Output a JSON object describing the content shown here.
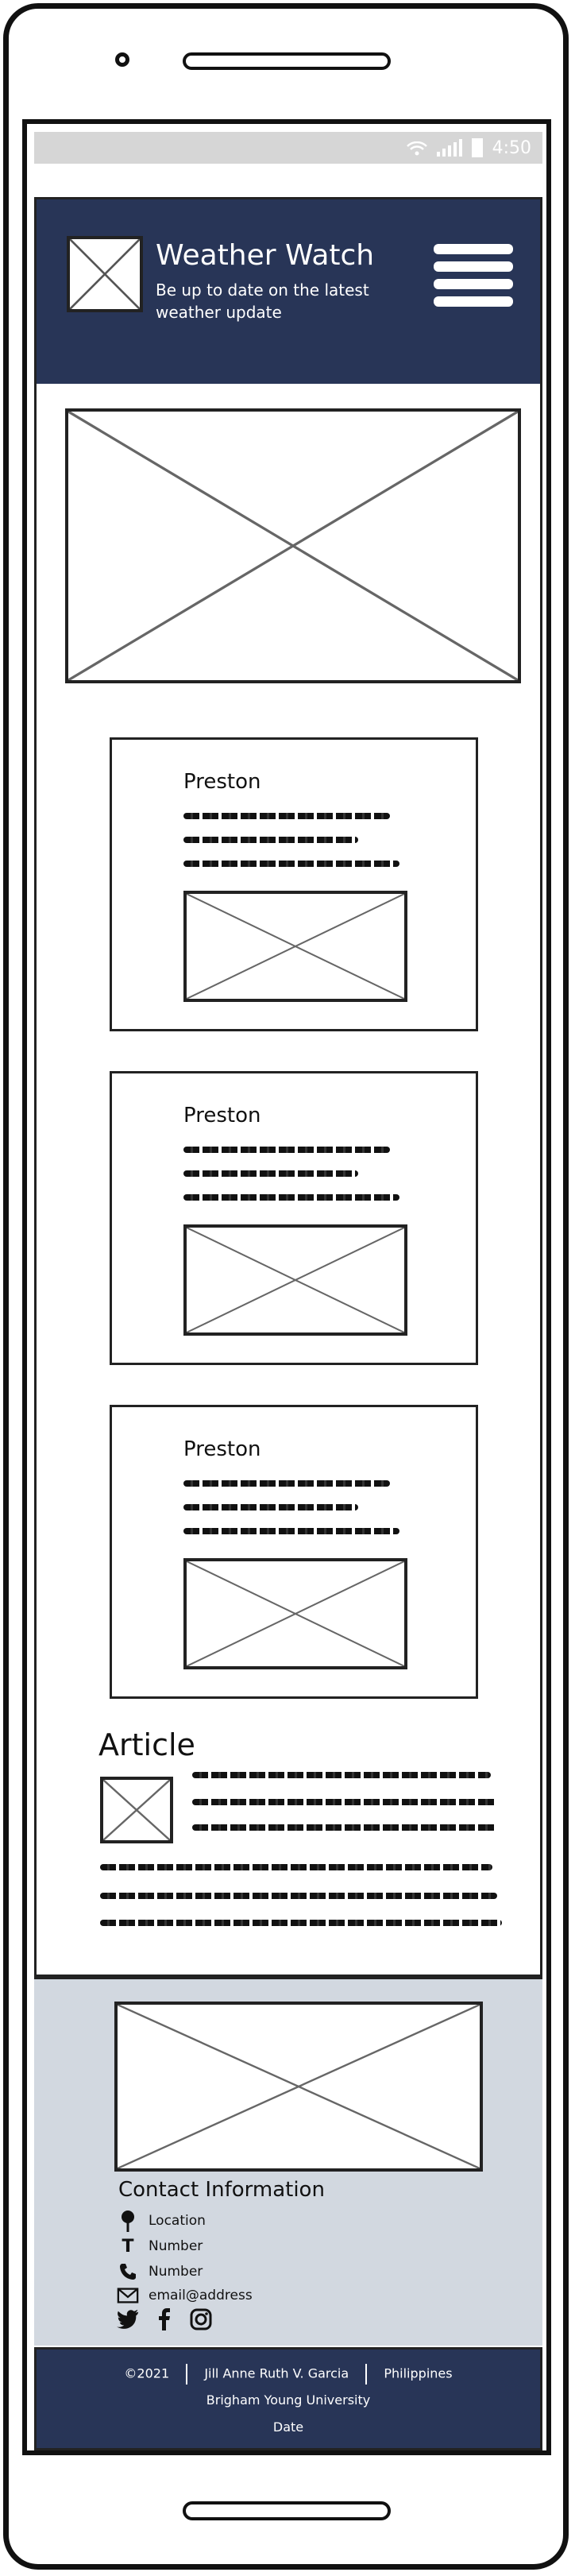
{
  "status_bar": {
    "time": "4:50",
    "icons": [
      "wifi-icon",
      "signal-icon",
      "battery-icon"
    ]
  },
  "header": {
    "title": "Weather Watch",
    "tagline": "Be up to date on the latest weather update",
    "menu_icon": "hamburger-menu-icon",
    "bg_color": "#283557"
  },
  "cards": [
    {
      "title": "Preston"
    },
    {
      "title": "Preston"
    },
    {
      "title": "Preston"
    }
  ],
  "article": {
    "title": "Article"
  },
  "contact": {
    "title": "Contact Information",
    "location": "Location",
    "number1": "Number",
    "number2": "Number",
    "email": "email@address",
    "social_icons": [
      "twitter-icon",
      "facebook-icon",
      "instagram-icon"
    ],
    "bg_color": "#d2d8e0"
  },
  "footer": {
    "copyright": "©2021",
    "author": "Jill Anne Ruth V. Garcia",
    "country": "Philippines",
    "school": "Brigham Young University",
    "date": "Date"
  }
}
